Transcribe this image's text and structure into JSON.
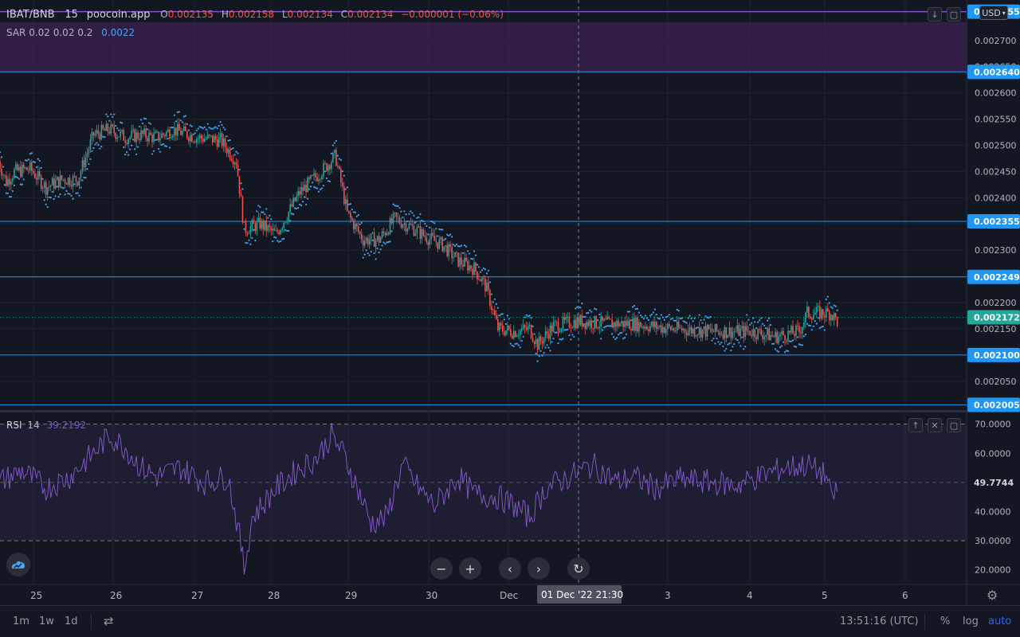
{
  "legend": {
    "symbol": "IBAT/BNB",
    "interval": "15",
    "source": "poocoin.app",
    "o_label": "O",
    "o_value": "0.002135",
    "h_label": "H",
    "h_value": "0.002158",
    "l_label": "L",
    "l_value": "0.002134",
    "c_label": "C",
    "c_value": "0.002134",
    "change": "−0.000001 (−0.06%)",
    "sar_label": "SAR 0.02 0.02 0.2",
    "sar_value": "0.0022"
  },
  "rsi_legend": {
    "label": "RSI",
    "length": "14",
    "value": "39.2192"
  },
  "currency": "USD",
  "colors": {
    "up": "#26a69a",
    "down": "#ef5350",
    "sar": "#42a5f5",
    "rsi": "#7e57c2",
    "hline": "#2196f3",
    "zone": "#4a2462"
  },
  "chart_data": [
    {
      "type": "candlestick",
      "title": "IBAT/BNB 15 poocoin.app",
      "x_ticks": [
        "25",
        "26",
        "27",
        "28",
        "29",
        "30",
        "Dec",
        "3",
        "4",
        "5",
        "6"
      ],
      "y_ticks": [
        "0.002700",
        "0.002650",
        "0.002600",
        "0.002550",
        "0.002500",
        "0.002450",
        "0.002400",
        "0.002300",
        "0.002200",
        "0.002150",
        "0.002050"
      ],
      "ylim": [
        0.001995,
        0.002765
      ],
      "horizontal_lines": [
        "0.002640",
        "0.002355",
        "0.002249",
        "0.002100",
        "0.002005"
      ],
      "top_line": "0.002755",
      "last_price": "0.002172",
      "zone": [
        0.00264,
        0.002735
      ],
      "crosshair_x_label": "01 Dec '22   21:30",
      "price_path": [
        [
          0,
          0.00247
        ],
        [
          0.1,
          0.00243
        ],
        [
          0.2,
          0.00245
        ],
        [
          0.4,
          0.002455
        ],
        [
          0.6,
          0.00242
        ],
        [
          0.8,
          0.002435
        ],
        [
          1.0,
          0.002435
        ],
        [
          1.2,
          0.00252
        ],
        [
          1.4,
          0.00253
        ],
        [
          1.6,
          0.002515
        ],
        [
          1.8,
          0.00252
        ],
        [
          2.0,
          0.002515
        ],
        [
          2.2,
          0.00253
        ],
        [
          2.5,
          0.002515
        ],
        [
          2.8,
          0.00251
        ],
        [
          3.0,
          0.00247
        ],
        [
          3.1,
          0.00234
        ],
        [
          3.3,
          0.00235
        ],
        [
          3.5,
          0.00233
        ],
        [
          3.8,
          0.00241
        ],
        [
          4.1,
          0.002455
        ],
        [
          4.25,
          0.00248
        ],
        [
          4.4,
          0.00237
        ],
        [
          4.6,
          0.00232
        ],
        [
          4.8,
          0.00232
        ],
        [
          5.0,
          0.00236
        ],
        [
          5.2,
          0.002345
        ],
        [
          5.4,
          0.002325
        ],
        [
          5.6,
          0.00231
        ],
        [
          5.8,
          0.00228
        ],
        [
          6.0,
          0.002265
        ],
        [
          6.15,
          0.00223
        ],
        [
          6.3,
          0.00215
        ],
        [
          6.5,
          0.002145
        ],
        [
          6.7,
          0.00215
        ],
        [
          6.8,
          0.00212
        ],
        [
          7.0,
          0.002155
        ],
        [
          7.3,
          0.002165
        ],
        [
          7.6,
          0.00216
        ],
        [
          8.0,
          0.00216
        ],
        [
          8.5,
          0.00215
        ],
        [
          9.0,
          0.002145
        ],
        [
          9.5,
          0.002145
        ],
        [
          9.8,
          0.002135
        ],
        [
          10.1,
          0.002145
        ],
        [
          10.2,
          0.00218
        ],
        [
          10.5,
          0.00218
        ],
        [
          10.6,
          0.00216
        ]
      ]
    },
    {
      "type": "line",
      "title": "RSI 14",
      "series": [
        {
          "name": "RSI",
          "last": "39.2192"
        }
      ],
      "y_ticks": [
        "70.0000",
        "60.0000",
        "40.0000",
        "30.0000",
        "20.0000"
      ],
      "ylim": [
        15,
        74
      ],
      "bands": [
        30,
        70
      ],
      "midline": 50,
      "current_label": "49.7744",
      "path": [
        [
          0,
          50
        ],
        [
          0.3,
          54
        ],
        [
          0.6,
          48
        ],
        [
          0.9,
          52
        ],
        [
          1.2,
          60
        ],
        [
          1.4,
          66
        ],
        [
          1.6,
          62
        ],
        [
          1.8,
          55
        ],
        [
          2.0,
          52
        ],
        [
          2.3,
          55
        ],
        [
          2.6,
          50
        ],
        [
          2.9,
          52
        ],
        [
          3.05,
          30
        ],
        [
          3.1,
          20
        ],
        [
          3.2,
          38
        ],
        [
          3.5,
          48
        ],
        [
          3.8,
          55
        ],
        [
          4.0,
          58
        ],
        [
          4.2,
          66
        ],
        [
          4.35,
          60
        ],
        [
          4.5,
          50
        ],
        [
          4.7,
          36
        ],
        [
          4.9,
          38
        ],
        [
          5.0,
          48
        ],
        [
          5.1,
          56
        ],
        [
          5.3,
          48
        ],
        [
          5.5,
          42
        ],
        [
          5.8,
          52
        ],
        [
          6.0,
          46
        ],
        [
          6.3,
          45
        ],
        [
          6.5,
          42
        ],
        [
          6.7,
          38
        ],
        [
          6.9,
          48
        ],
        [
          7.2,
          52
        ],
        [
          7.5,
          56
        ],
        [
          7.8,
          50
        ],
        [
          8.0,
          52
        ],
        [
          8.3,
          48
        ],
        [
          8.6,
          51
        ],
        [
          9.0,
          50
        ],
        [
          9.3,
          49
        ],
        [
          9.6,
          52
        ],
        [
          9.9,
          55
        ],
        [
          10.2,
          56
        ],
        [
          10.45,
          52
        ],
        [
          10.5,
          44
        ],
        [
          10.55,
          47
        ]
      ]
    }
  ],
  "toolbar": {
    "tf_1m": "1m",
    "tf_1w": "1w",
    "tf_1d": "1d",
    "time": "13:51:16 (UTC)",
    "percent": "%",
    "log": "log",
    "auto": "auto"
  },
  "icons": {
    "zoom_out": "minus-icon",
    "zoom_in": "plus-icon",
    "scroll_left": "chevron-left-icon",
    "scroll_right": "chevron-right-icon",
    "reset": "reset-icon",
    "settings": "gear-icon",
    "compare": "calendar-icon",
    "logo": "tradingview-logo-icon"
  }
}
